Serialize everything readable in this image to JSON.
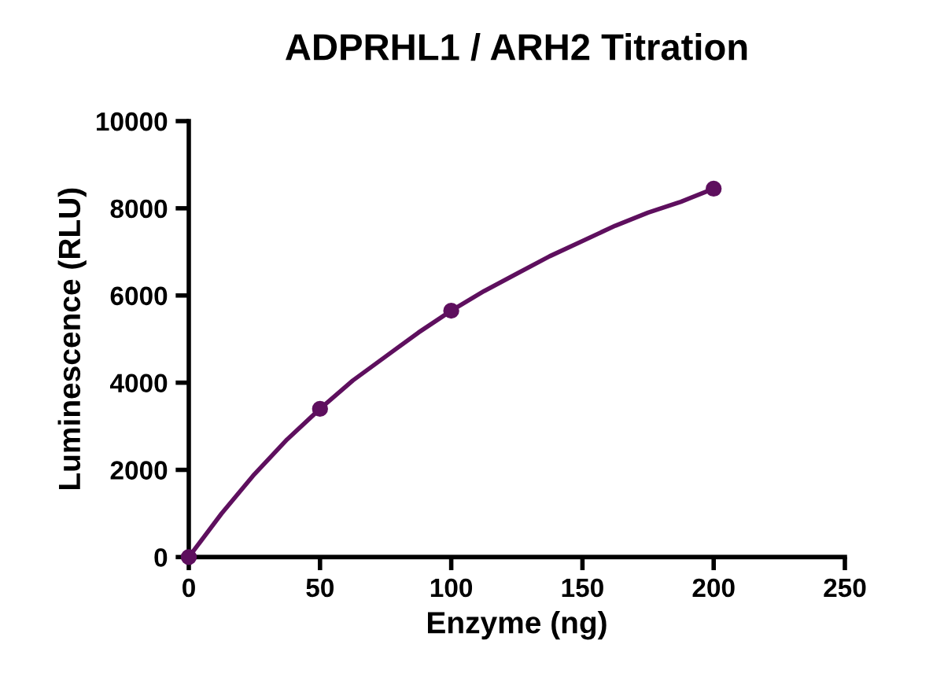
{
  "chart_data": {
    "type": "scatter",
    "title": "ADPRHL1 / ARH2 Titration",
    "xlabel": "Enzyme (ng)",
    "ylabel": "Luminescence (RLU)",
    "xlim": [
      0,
      250
    ],
    "xticks": [
      0,
      50,
      100,
      150,
      200,
      250
    ],
    "ylim": [
      0,
      10000
    ],
    "yticks": [
      0,
      2000,
      4000,
      6000,
      8000,
      10000
    ],
    "grid": false,
    "legend": false,
    "series": [
      {
        "type": "line",
        "color": "#5e0f5e",
        "line_style": "solid",
        "marker": "none",
        "x": [
          0,
          12.5,
          25,
          37.5,
          50,
          62.5,
          75,
          87.5,
          100,
          112.5,
          125,
          137.5,
          150,
          162.5,
          175,
          187.5,
          200
        ],
        "values": [
          0,
          1000,
          1900,
          2700,
          3400,
          4050,
          4600,
          5150,
          5650,
          6100,
          6500,
          6900,
          7250,
          7600,
          7900,
          8150,
          8450
        ]
      },
      {
        "color": "#5e0f5e",
        "marker": "circle",
        "x": [
          0,
          50,
          100,
          200
        ],
        "values": [
          0,
          3400,
          5650,
          8450
        ]
      }
    ]
  }
}
